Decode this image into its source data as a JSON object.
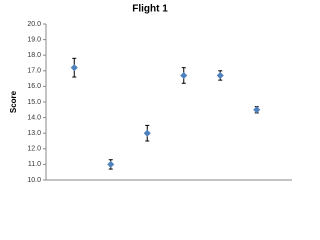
{
  "chart_data": {
    "type": "scatter",
    "title": "Flight 1",
    "y_label": "Score",
    "categories": [
      null,
      null,
      null,
      null,
      null,
      null
    ],
    "values": [
      17.2,
      11.0,
      13.0,
      16.7,
      16.7,
      14.5
    ],
    "errors": [
      0.6,
      0.3,
      0.5,
      0.5,
      0.3,
      0.2
    ],
    "color": "#4f81bd",
    "ylim": [
      10,
      20
    ],
    "yticks": [
      {
        "value": 10,
        "label": "10.0"
      },
      {
        "value": 11,
        "label": "11.0"
      },
      {
        "value": 12,
        "label": "12.0"
      },
      {
        "value": 13,
        "label": "13.0"
      },
      {
        "value": 14,
        "label": "14.0"
      },
      {
        "value": 15,
        "label": "15.0"
      },
      {
        "value": 16,
        "label": "16.0"
      },
      {
        "value": 17,
        "label": "17.0"
      },
      {
        "value": 18,
        "label": "18.0"
      },
      {
        "value": 19,
        "label": "19.0"
      },
      {
        "value": 20,
        "label": "20.0"
      }
    ],
    "grid": false
  }
}
